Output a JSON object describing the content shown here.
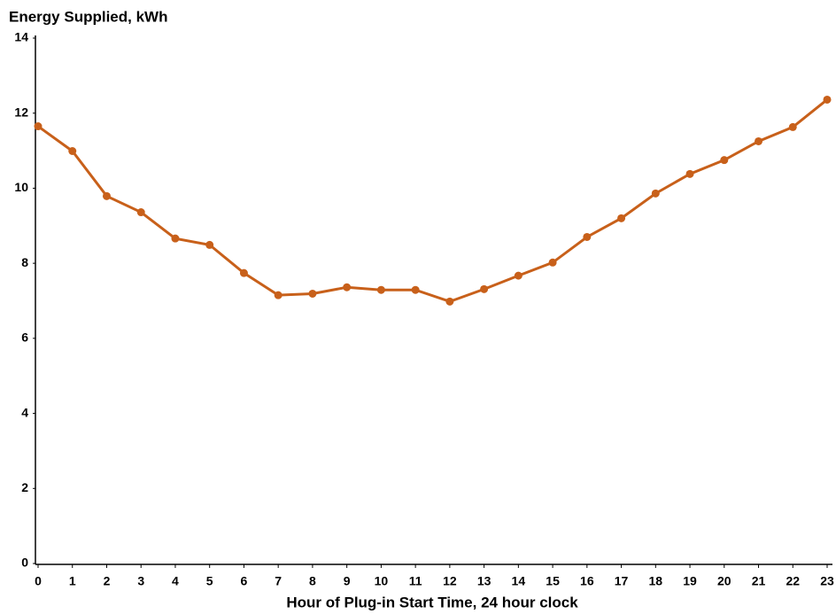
{
  "chart_data": {
    "type": "line",
    "y_label": "Energy Supplied, kWh",
    "x_label": "Hour of Plug-in Start Time, 24 hour clock",
    "x": [
      0,
      1,
      2,
      3,
      4,
      5,
      6,
      7,
      8,
      9,
      10,
      11,
      12,
      13,
      14,
      15,
      16,
      17,
      18,
      19,
      20,
      21,
      22,
      23
    ],
    "series": [
      {
        "name": "Energy Supplied",
        "color": "#c8601a",
        "values": [
          11.65,
          10.99,
          9.79,
          9.36,
          8.66,
          8.49,
          7.74,
          7.15,
          7.19,
          7.36,
          7.29,
          7.29,
          6.98,
          7.31,
          7.67,
          8.02,
          8.7,
          9.2,
          9.86,
          10.38,
          10.75,
          11.25,
          11.63,
          12.36
        ]
      }
    ],
    "xlim": [
      0,
      23
    ],
    "xticks": [
      0,
      1,
      2,
      3,
      4,
      5,
      6,
      7,
      8,
      9,
      10,
      11,
      12,
      13,
      14,
      15,
      16,
      17,
      18,
      19,
      20,
      21,
      22,
      23
    ],
    "ylim": [
      0,
      14
    ],
    "yticks": [
      0,
      2,
      4,
      6,
      8,
      10,
      12,
      14
    ],
    "grid": false
  }
}
